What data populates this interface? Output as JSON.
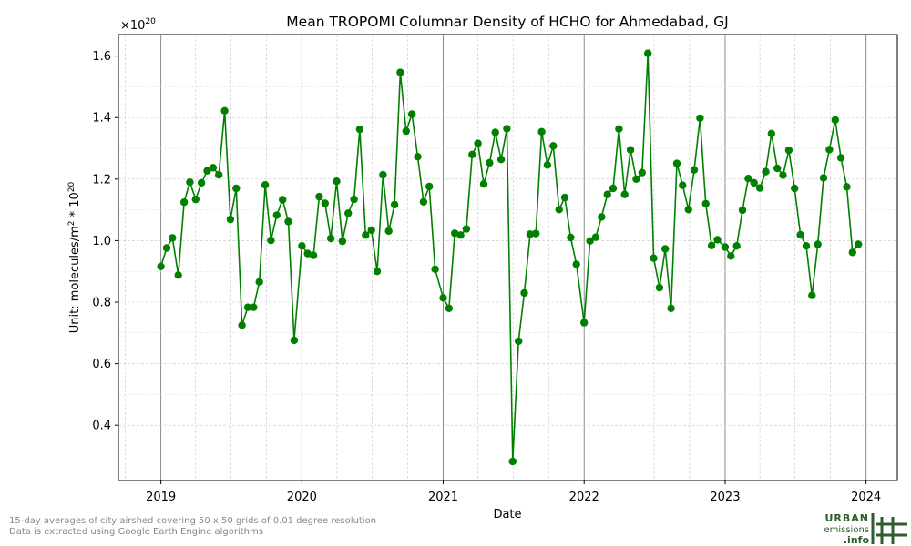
{
  "chart_data": {
    "type": "line",
    "title": "Mean TROPOMI Columnar Density of HCHO for Ahmedabad, GJ",
    "xlabel": "Date",
    "ylabel_prefix": "Unit: molecules/m",
    "ylabel_sup1": "2",
    "ylabel_mid": " * 10",
    "ylabel_sup2": "20",
    "offset_base": "×10",
    "offset_exp": "20",
    "x_ticks": [
      "2019",
      "2020",
      "2021",
      "2022",
      "2023",
      "2024"
    ],
    "y_ticks": [
      "0.4",
      "0.6",
      "0.8",
      "1.0",
      "1.2",
      "1.4",
      "1.6"
    ],
    "y_tick_values": [
      0.4,
      0.6,
      0.8,
      1.0,
      1.2,
      1.4,
      1.6
    ],
    "xlim": [
      "2018-09-13",
      "2024-03-22"
    ],
    "ylim": [
      0.22,
      1.67
    ],
    "grid": true,
    "series_color": "#008000",
    "series": [
      {
        "x": [
          "2019-01-01",
          "2019-01-16",
          "2019-01-31",
          "2019-02-15",
          "2019-03-02",
          "2019-03-17",
          "2019-04-01",
          "2019-04-16",
          "2019-05-01",
          "2019-05-16",
          "2019-05-31",
          "2019-06-15",
          "2019-06-30",
          "2019-07-15",
          "2019-07-30",
          "2019-08-14",
          "2019-08-29",
          "2019-09-13",
          "2019-09-28",
          "2019-10-13",
          "2019-10-28",
          "2019-11-12",
          "2019-11-27",
          "2019-12-12",
          "2020-01-01",
          "2020-01-16",
          "2020-01-31",
          "2020-02-15",
          "2020-03-01",
          "2020-03-16",
          "2020-03-31",
          "2020-04-15",
          "2020-04-30",
          "2020-05-15",
          "2020-05-30",
          "2020-06-14",
          "2020-06-29",
          "2020-07-14",
          "2020-07-29",
          "2020-08-13",
          "2020-08-28",
          "2020-09-12",
          "2020-09-27",
          "2020-10-12",
          "2020-10-27",
          "2020-11-11",
          "2020-11-26",
          "2020-12-11",
          "2021-01-01",
          "2021-01-16",
          "2021-01-31",
          "2021-02-15",
          "2021-03-02",
          "2021-03-17",
          "2021-04-01",
          "2021-04-16",
          "2021-05-01",
          "2021-05-16",
          "2021-05-31",
          "2021-06-15",
          "2021-06-30",
          "2021-07-15",
          "2021-07-30",
          "2021-08-14",
          "2021-08-29",
          "2021-09-13",
          "2021-09-28",
          "2021-10-13",
          "2021-10-28",
          "2021-11-12",
          "2021-11-27",
          "2021-12-12",
          "2022-01-01",
          "2022-01-16",
          "2022-01-31",
          "2022-02-15",
          "2022-03-02",
          "2022-03-17",
          "2022-04-01",
          "2022-04-16",
          "2022-05-01",
          "2022-05-16",
          "2022-05-31",
          "2022-06-15",
          "2022-06-30",
          "2022-07-15",
          "2022-07-30",
          "2022-08-14",
          "2022-08-29",
          "2022-09-13",
          "2022-09-28",
          "2022-10-13",
          "2022-10-28",
          "2022-11-12",
          "2022-11-27",
          "2022-12-12",
          "2023-01-01",
          "2023-01-16",
          "2023-01-31",
          "2023-02-15",
          "2023-03-02",
          "2023-03-17",
          "2023-04-01",
          "2023-04-16",
          "2023-05-01",
          "2023-05-16",
          "2023-05-31",
          "2023-06-15",
          "2023-06-30",
          "2023-07-15",
          "2023-07-30",
          "2023-08-14",
          "2023-08-29",
          "2023-09-13",
          "2023-09-28",
          "2023-10-13",
          "2023-10-28",
          "2023-11-12",
          "2023-11-27",
          "2023-12-12"
        ],
        "values": [
          0.916,
          0.976,
          1.009,
          0.888,
          1.125,
          1.19,
          1.134,
          1.188,
          1.227,
          1.237,
          1.214,
          1.422,
          1.069,
          1.17,
          0.725,
          0.783,
          0.783,
          0.866,
          1.181,
          1.001,
          1.083,
          1.133,
          1.062,
          0.676,
          0.983,
          0.958,
          0.952,
          1.143,
          1.121,
          1.007,
          1.193,
          0.998,
          1.089,
          1.134,
          1.362,
          1.018,
          1.034,
          0.9,
          1.214,
          1.031,
          1.117,
          1.547,
          1.356,
          1.411,
          1.273,
          1.126,
          1.176,
          0.907,
          0.814,
          0.78,
          1.024,
          1.018,
          1.038,
          1.28,
          1.316,
          1.184,
          1.253,
          1.352,
          1.264,
          1.364,
          0.282,
          0.673,
          0.83,
          1.021,
          1.023,
          1.354,
          1.246,
          1.308,
          1.101,
          1.14,
          1.01,
          0.923,
          0.733,
          0.999,
          1.011,
          1.077,
          1.15,
          1.17,
          1.363,
          1.15,
          1.295,
          1.2,
          1.221,
          1.609,
          0.943,
          0.847,
          0.973,
          0.78,
          1.251,
          1.18,
          1.101,
          1.23,
          1.398,
          1.12,
          0.984,
          1.003,
          0.979,
          0.95,
          0.983,
          1.099,
          1.202,
          1.188,
          1.171,
          1.224,
          1.348,
          1.235,
          1.213,
          1.294,
          1.17,
          1.019,
          0.983,
          0.822,
          0.988,
          1.204,
          1.296,
          1.392,
          1.269,
          1.175,
          0.962,
          0.988
        ]
      }
    ]
  },
  "footnote": {
    "line1": "15-day averages of city airshed covering 50 x 50 grids of 0.01 degree resolution",
    "line2": "Data is extracted using Google Earth Engine algorithms"
  },
  "logo": {
    "word1": "URBAN",
    "word2": "emissions",
    "word3": ".info",
    "color": "#2e5e2e",
    "icon": "hash-grid-icon"
  }
}
